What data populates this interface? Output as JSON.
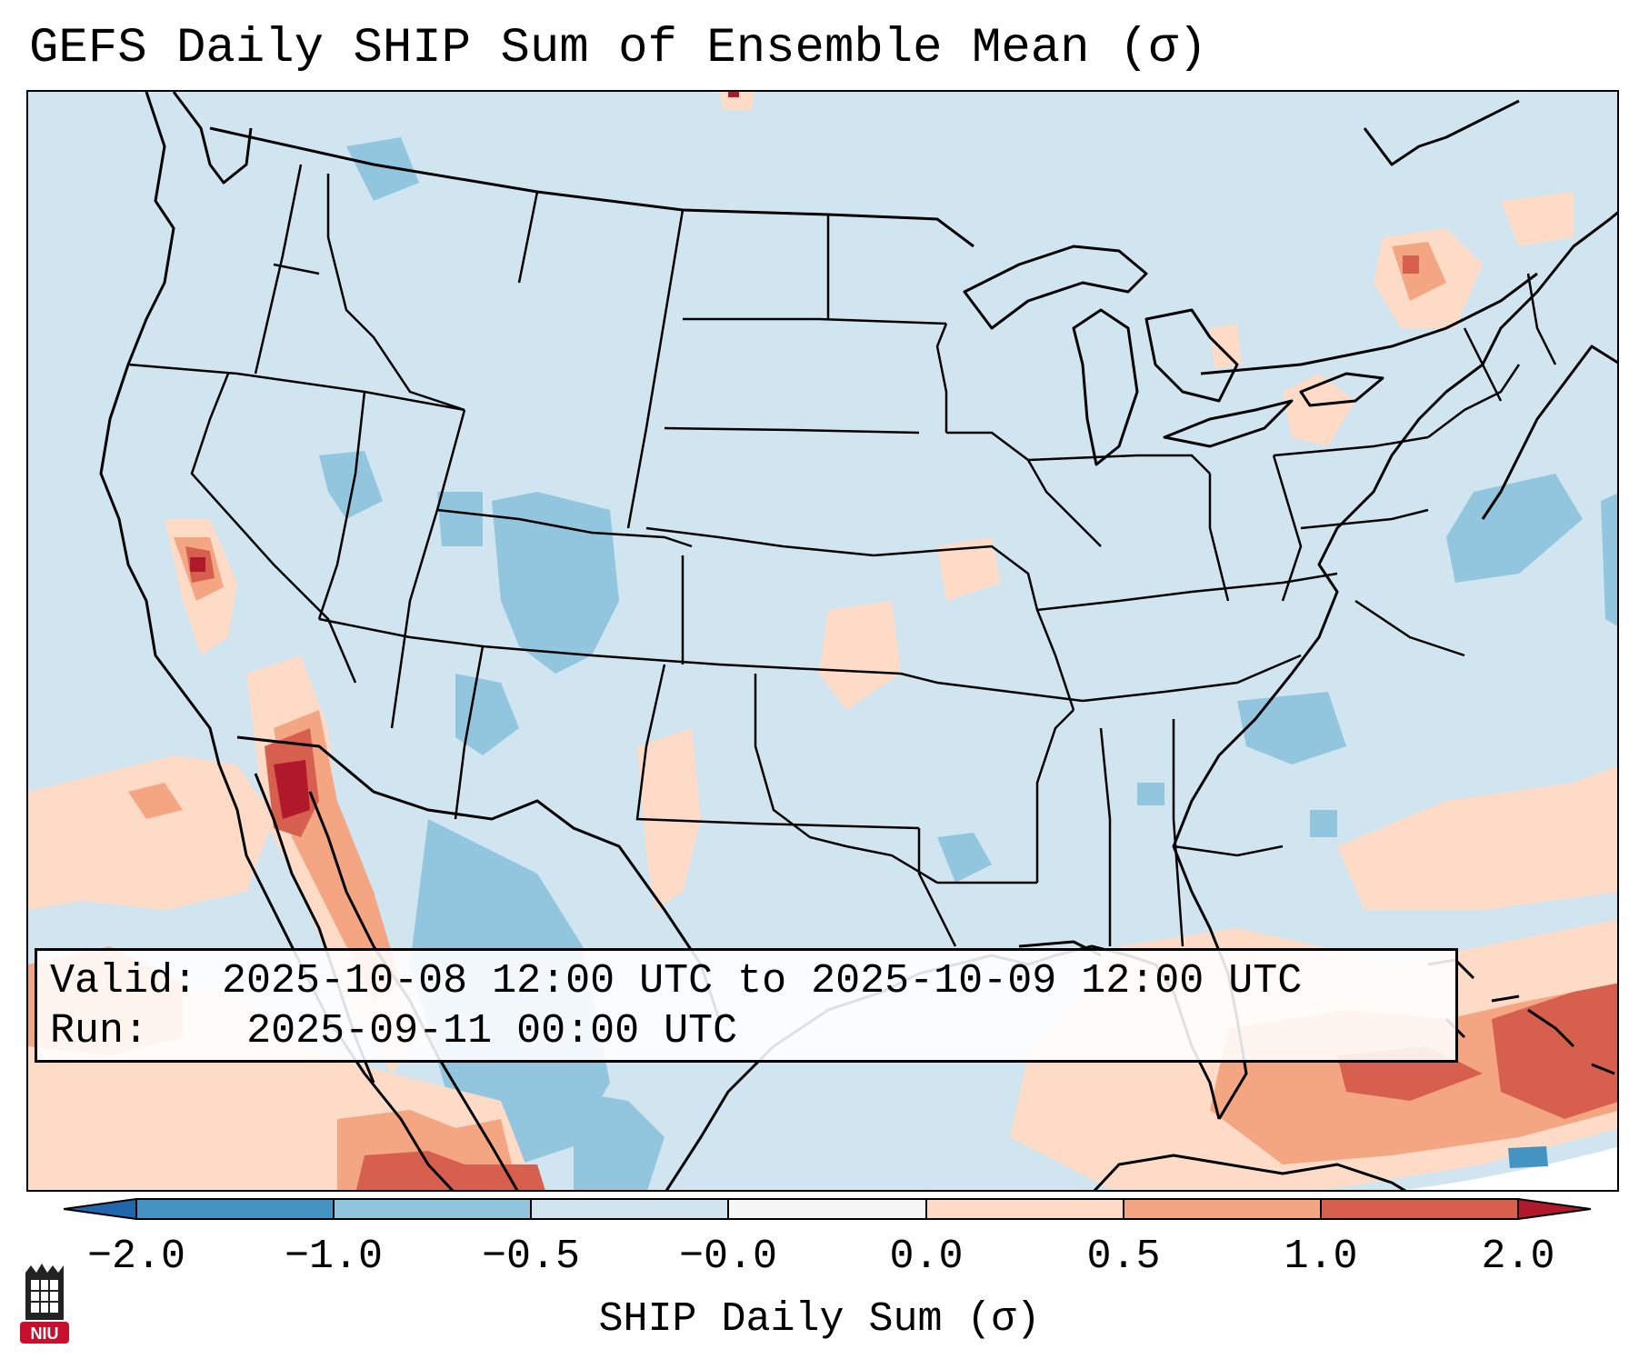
{
  "title": "GEFS Daily SHIP Sum of Ensemble Mean (σ)",
  "info": {
    "valid_label": "Valid:",
    "valid_value": "2025-10-08 12:00 UTC to 2025-10-09 12:00 UTC",
    "run_label": "Run:",
    "run_value": "2025-09-11 00:00 UTC"
  },
  "colorbar": {
    "label": "SHIP Daily Sum (σ)",
    "ticks": [
      "−2.0",
      "−1.0",
      "−0.5",
      "−0.0",
      "0.0",
      "0.5",
      "1.0",
      "2.0"
    ],
    "bins": [
      {
        "from": -2.0,
        "to": -1.0,
        "color": "#4393c3"
      },
      {
        "from": -1.0,
        "to": -0.5,
        "color": "#92c5de"
      },
      {
        "from": -0.5,
        "to": -0.0,
        "color": "#d1e5f0"
      },
      {
        "from": -0.0,
        "to": 0.0,
        "color": "#f7f7f7"
      },
      {
        "from": 0.0,
        "to": 0.5,
        "color": "#fddbc7"
      },
      {
        "from": 0.5,
        "to": 1.0,
        "color": "#f4a582"
      },
      {
        "from": 1.0,
        "to": 2.0,
        "color": "#d6604d"
      }
    ],
    "under_color": "#2166ac",
    "over_color": "#b2182b"
  },
  "logo": {
    "text": "NIU",
    "color": "#c8102e"
  }
}
